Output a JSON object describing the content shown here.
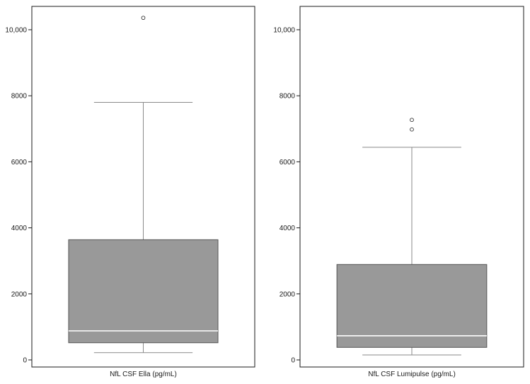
{
  "chart_data": [
    {
      "type": "box",
      "xlabel": "NfL CSF Ella (pg/mL)",
      "ylim": [
        0,
        10600
      ],
      "yticks": [
        0,
        2000,
        4000,
        6000,
        8000,
        10000
      ],
      "ytick_labels": [
        "0",
        "2000",
        "4000",
        "6000",
        "8000",
        "10,000"
      ],
      "box": {
        "whisker_low": 220,
        "q1": 520,
        "median": 880,
        "q3": 3640,
        "whisker_high": 7800
      },
      "outliers": [
        10360
      ],
      "box_color": "#999999",
      "median_color": "#ffffff"
    },
    {
      "type": "box",
      "xlabel": "NfL CSF Lumipulse (pg/mL)",
      "ylim": [
        0,
        10600
      ],
      "yticks": [
        0,
        2000,
        4000,
        6000,
        8000,
        10000
      ],
      "ytick_labels": [
        "0",
        "2000",
        "4000",
        "6000",
        "8000",
        "10,000"
      ],
      "box": {
        "whisker_low": 150,
        "q1": 380,
        "median": 730,
        "q3": 2890,
        "whisker_high": 6440
      },
      "outliers": [
        6980,
        7270
      ],
      "box_color": "#999999",
      "median_color": "#ffffff"
    }
  ]
}
